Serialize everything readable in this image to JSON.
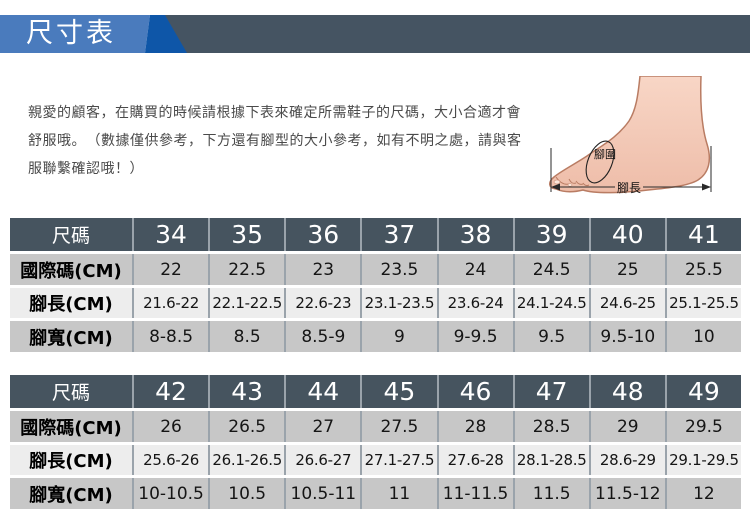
{
  "header": {
    "title": "尺寸表"
  },
  "intro": {
    "text": "親愛的顧客，在購買的時候請根據下表來確定所需鞋子的尺碼，大小合適才會舒服哦。　（數據僅供參考，下方還有腳型的大小參考，如有不明之處，請與客服聯繫確認哦！）"
  },
  "foot_diagram": {
    "girth_label": "腳圍",
    "length_label": "腳長"
  },
  "tables": [
    {
      "rows": [
        {
          "label": "尺碼",
          "values": [
            "34",
            "35",
            "36",
            "37",
            "38",
            "39",
            "40",
            "41"
          ]
        },
        {
          "label": "國際碼(CM)",
          "values": [
            "22",
            "22.5",
            "23",
            "23.5",
            "24",
            "24.5",
            "25",
            "25.5"
          ]
        },
        {
          "label": "腳長(CM)",
          "values": [
            "21.6-22",
            "22.1-22.5",
            "22.6-23",
            "23.1-23.5",
            "23.6-24",
            "24.1-24.5",
            "24.6-25",
            "25.1-25.5"
          ]
        },
        {
          "label": "腳寬(CM)",
          "values": [
            "8-8.5",
            "8.5",
            "8.5-9",
            "9",
            "9-9.5",
            "9.5",
            "9.5-10",
            "10"
          ]
        }
      ]
    },
    {
      "rows": [
        {
          "label": "尺碼",
          "values": [
            "42",
            "43",
            "44",
            "45",
            "46",
            "47",
            "48",
            "49"
          ]
        },
        {
          "label": "國際碼(CM)",
          "values": [
            "26",
            "26.5",
            "27",
            "27.5",
            "28",
            "28.5",
            "29",
            "29.5"
          ]
        },
        {
          "label": "腳長(CM)",
          "values": [
            "25.6-26",
            "26.1-26.5",
            "26.6-27",
            "27.1-27.5",
            "27.6-28",
            "28.1-28.5",
            "28.6-29",
            "29.1-29.5"
          ]
        },
        {
          "label": "腳寬(CM)",
          "values": [
            "10-10.5",
            "10.5",
            "10.5-11",
            "11",
            "11-11.5",
            "11.5",
            "11.5-12",
            "12"
          ]
        }
      ]
    }
  ],
  "colors": {
    "banner_blue": "#4a7bbd",
    "banner_dark_blue": "#0e56a8",
    "banner_slate": "#455462",
    "table_header_bg": "#46545f",
    "row_gray": "#c7c7c7",
    "row_light": "#ededed"
  }
}
